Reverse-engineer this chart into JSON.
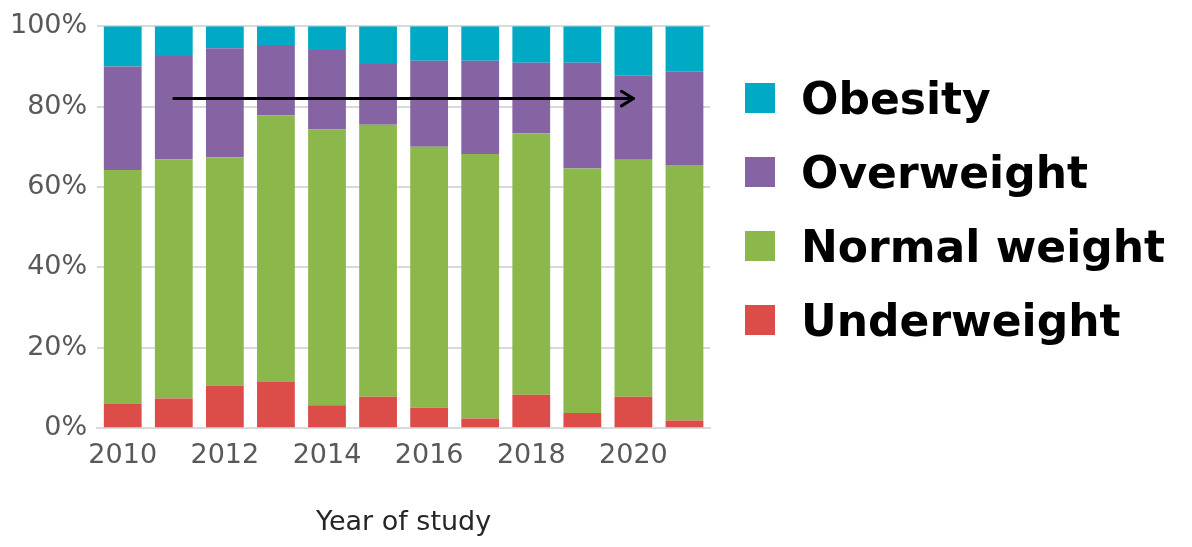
{
  "chart_data": {
    "type": "bar",
    "stacked": true,
    "xlabel": "Year of study",
    "categories": [
      "2010",
      null,
      "2012",
      null,
      "2014",
      null,
      "2016",
      null,
      "2018",
      null,
      "2020",
      null
    ],
    "series": [
      {
        "name": "Underweight",
        "color": "#dc4c48",
        "values": [
          6.0,
          7.4,
          10.6,
          11.5,
          5.7,
          7.8,
          5.1,
          2.4,
          8.3,
          3.8,
          7.8,
          1.9
        ]
      },
      {
        "name": "Normal weight",
        "color": "#8cb84b",
        "values": [
          58.2,
          59.5,
          56.8,
          66.3,
          68.6,
          67.7,
          64.9,
          65.8,
          65.0,
          60.8,
          59.0,
          63.6
        ]
      },
      {
        "name": "Overweight",
        "color": "#8664a3",
        "values": [
          25.8,
          25.7,
          27.1,
          17.5,
          19.8,
          15.1,
          21.4,
          23.2,
          17.6,
          26.3,
          21.0,
          23.2
        ]
      },
      {
        "name": "Obesity",
        "color": "#00aac4",
        "values": [
          10.0,
          7.4,
          5.5,
          4.7,
          5.9,
          9.4,
          8.6,
          8.6,
          9.1,
          9.1,
          12.2,
          11.3
        ]
      },
      {
        "type": "line",
        "color": "#000000",
        "values": [
          null,
          82,
          null,
          null,
          null,
          null,
          null,
          null,
          null,
          null,
          82,
          null
        ]
      }
    ],
    "ylim": [
      0,
      100
    ],
    "yticks": [
      {
        "value": 0,
        "label": "0%"
      },
      {
        "value": 20,
        "label": "20%"
      },
      {
        "value": 40,
        "label": "40%"
      },
      {
        "value": 60,
        "label": "60%"
      },
      {
        "value": 80,
        "label": "80%"
      },
      {
        "value": 100,
        "label": "100%"
      }
    ],
    "grid": "y",
    "legend": "right"
  }
}
